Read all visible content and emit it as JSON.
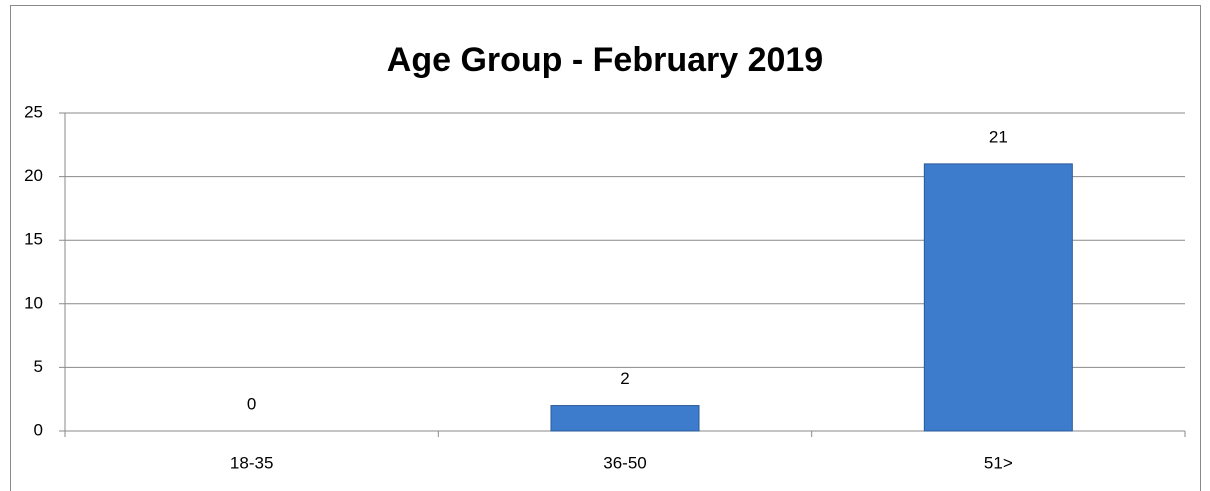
{
  "chart_data": {
    "type": "bar",
    "title": "Age Group - February 2019",
    "categories": [
      "18-35",
      "36-50",
      "51>"
    ],
    "values": [
      0,
      2,
      21
    ],
    "color": "#3d7ccc",
    "ylim": [
      0,
      25
    ],
    "yticks": [
      0,
      5,
      10,
      15,
      20,
      25
    ],
    "grid": true
  }
}
